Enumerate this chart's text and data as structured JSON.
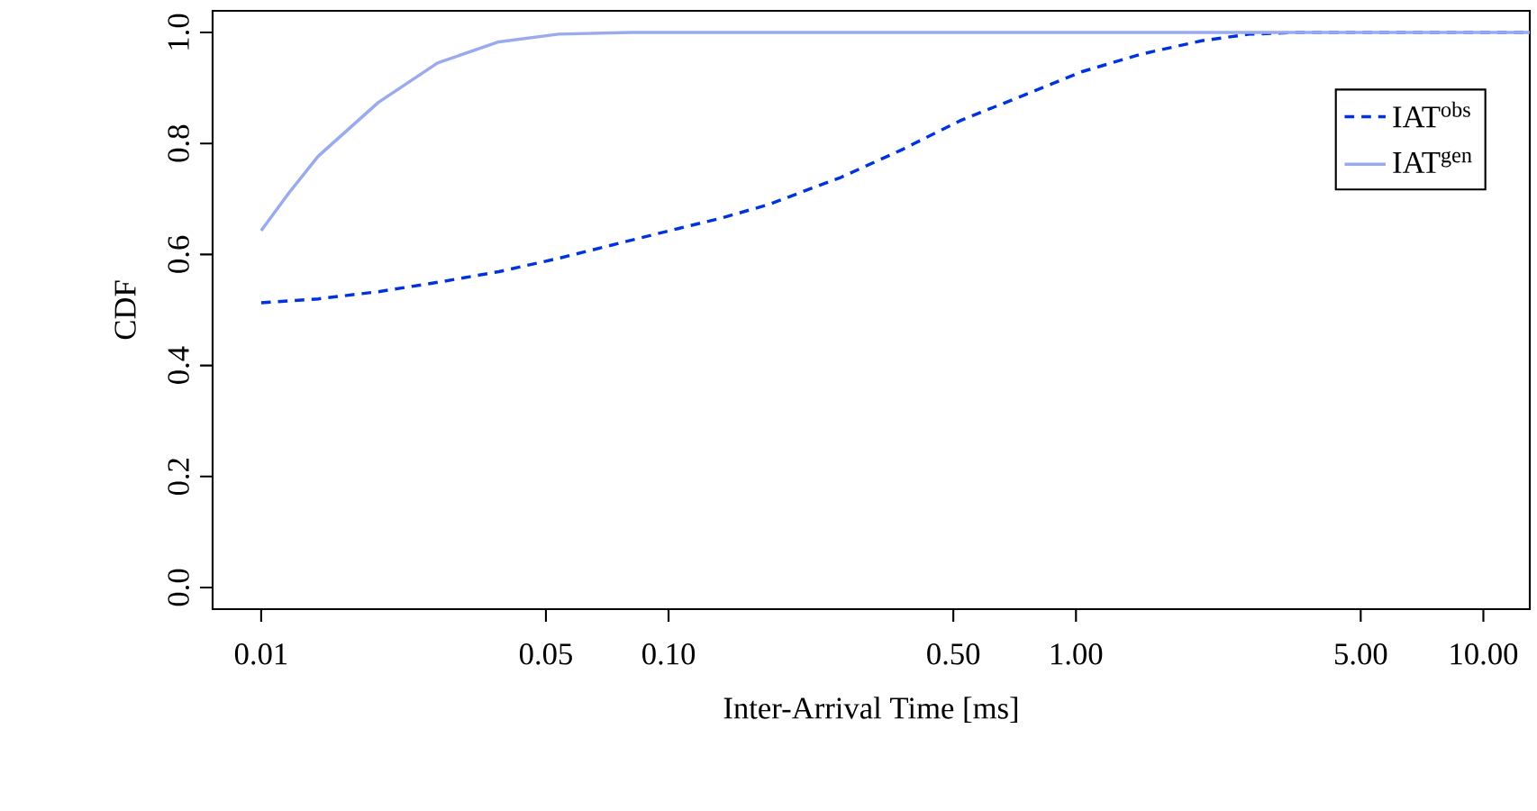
{
  "chart_data": {
    "type": "line",
    "xlabel": "Inter-Arrival Time [ms]",
    "ylabel": "CDF",
    "log": "x",
    "legend": "top right",
    "xlim": [
      0.0076,
      13.0
    ],
    "ylim": [
      -0.039,
      1.039
    ],
    "xticks": [
      {
        "value": 0.01,
        "label": "0.01"
      },
      {
        "value": 0.05,
        "label": "0.05"
      },
      {
        "value": 0.1,
        "label": "0.10"
      },
      {
        "value": 0.5,
        "label": "0.50"
      },
      {
        "value": 1,
        "label": "1.00"
      },
      {
        "value": 5,
        "label": "5.00"
      },
      {
        "value": 10,
        "label": "10.00"
      }
    ],
    "yticks": [
      {
        "value": 0,
        "label": "0.0"
      },
      {
        "value": 0.2,
        "label": "0.2"
      },
      {
        "value": 0.4,
        "label": "0.4"
      },
      {
        "value": 0.6,
        "label": "0.6"
      },
      {
        "value": 0.8,
        "label": "0.8"
      },
      {
        "value": 1,
        "label": "1.0"
      }
    ],
    "series": [
      {
        "name": "IAT$^{obs}$",
        "color": "#0033dd",
        "line_style": "dashed",
        "x": [
          0.01,
          0.0138,
          0.0194,
          0.0272,
          0.0383,
          0.0537,
          0.0754,
          0.106,
          0.134,
          0.176,
          0.265,
          0.372,
          0.523,
          0.734,
          1.031,
          1.447,
          2.034,
          2.668,
          3.5,
          13.0
        ],
        "values": [
          0.513,
          0.52,
          0.533,
          0.55,
          0.569,
          0.593,
          0.62,
          0.647,
          0.665,
          0.69,
          0.739,
          0.788,
          0.842,
          0.885,
          0.929,
          0.961,
          0.985,
          0.997,
          1.0,
          1.0
        ]
      },
      {
        "name": "IAT$^{gen}$",
        "color": "#99aaee",
        "line_style": "solid",
        "x": [
          0.01,
          0.0117,
          0.0138,
          0.0194,
          0.0271,
          0.0383,
          0.0537,
          0.0807,
          13.0
        ],
        "values": [
          0.643,
          0.711,
          0.777,
          0.874,
          0.945,
          0.983,
          0.997,
          1.0,
          1.0
        ]
      }
    ]
  }
}
